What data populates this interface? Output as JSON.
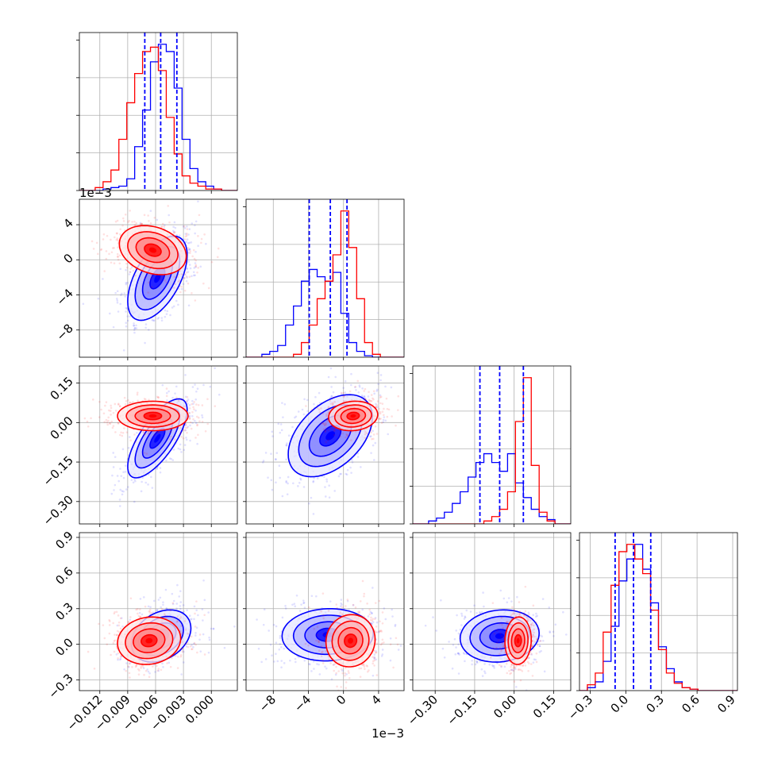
{
  "colors": {
    "series_a": "#0000ff",
    "series_b": "#ff0000",
    "grid": "#b0b0b0",
    "axes": "#000000"
  },
  "chart_data": {
    "type": "corner",
    "grid": true,
    "legend": "none",
    "params": [
      {
        "range": [
          -0.0142,
          0.0028
        ],
        "ticks": [
          -0.012,
          -0.009,
          -0.006,
          -0.003,
          0.0
        ],
        "tick_labels": [
          "−0.012",
          "−0.009",
          "−0.006",
          "−0.003",
          "0.000"
        ]
      },
      {
        "range": [
          -11.1,
          6.9
        ],
        "ticks": [
          -8,
          -4,
          0,
          4
        ],
        "tick_labels": [
          "−8",
          "−4",
          "0",
          "4"
        ],
        "offset_text": "1e−3"
      },
      {
        "range": [
          -0.385,
          0.215
        ],
        "ticks": [
          -0.3,
          -0.15,
          0.0,
          0.15
        ],
        "tick_labels": [
          "−0.30",
          "−0.15",
          "0.00",
          "0.15"
        ]
      },
      {
        "range": [
          -0.39,
          0.94
        ],
        "ticks": [
          -0.3,
          0.0,
          0.3,
          0.6,
          0.9
        ],
        "tick_labels": [
          "−0.3",
          "0.0",
          "0.3",
          "0.6",
          "0.9"
        ]
      }
    ],
    "series": [
      {
        "color": "#0000ff",
        "hist": [
          {
            "edges": [
              -0.0142,
              0.0028
            ],
            "counts": [
              0,
              0,
              0,
              1,
              2,
              3,
              8,
              30,
              55,
              88,
              100,
              95,
              70,
              35,
              15,
              6,
              3,
              1,
              0,
              0
            ]
          },
          {
            "edges": [
              -11.1,
              6.9
            ],
            "counts": [
              0,
              0,
              2,
              4,
              8,
              22,
              35,
              52,
              60,
              55,
              52,
              58,
              30,
              10,
              4,
              1,
              0,
              0,
              0,
              0
            ]
          },
          {
            "edges": [
              -0.385,
              0.215
            ],
            "counts": [
              0,
              0,
              2,
              4,
              8,
              14,
              22,
              32,
              42,
              48,
              42,
              36,
              48,
              28,
              18,
              10,
              5,
              3,
              0,
              0
            ]
          },
          {
            "edges": [
              -0.39,
              0.94
            ],
            "counts": [
              0,
              2,
              6,
              20,
              44,
              75,
              90,
              100,
              83,
              60,
              30,
              15,
              6,
              2,
              1,
              0,
              0,
              0,
              0,
              0
            ]
          }
        ],
        "quantiles": [
          [
            -0.00716,
            -0.00545,
            -0.00371
          ],
          [
            -3.9,
            -1.5,
            0.4
          ],
          [
            -0.13,
            -0.055,
            0.035
          ],
          [
            -0.09,
            0.065,
            0.21
          ]
        ],
        "blobs": [
          {
            "i": 0,
            "j": 1,
            "mx": -0.0058,
            "my": -2.1,
            "sx": 0.0016,
            "sy": 2.4,
            "rho": 0.55
          },
          {
            "i": 0,
            "j": 2,
            "mx": -0.0058,
            "my": -0.06,
            "sx": 0.0016,
            "sy": 0.075,
            "rho": 0.72
          },
          {
            "i": 0,
            "j": 3,
            "mx": -0.0054,
            "my": 0.07,
            "sx": 0.0016,
            "sy": 0.11,
            "rho": 0.3
          },
          {
            "i": 1,
            "j": 2,
            "mx": -1.5,
            "my": -0.05,
            "sx": 2.4,
            "sy": 0.078,
            "rho": 0.45
          },
          {
            "i": 1,
            "j": 3,
            "mx": -1.8,
            "my": 0.08,
            "sx": 2.6,
            "sy": 0.11,
            "rho": 0.05
          },
          {
            "i": 2,
            "j": 3,
            "mx": -0.055,
            "my": 0.07,
            "sx": 0.075,
            "sy": 0.11,
            "rho": 0.1
          }
        ]
      },
      {
        "color": "#ff0000",
        "hist": [
          {
            "edges": [
              -0.0142,
              0.0028
            ],
            "counts": [
              0,
              0,
              2,
              6,
              14,
              35,
              60,
              80,
              95,
              98,
              82,
              50,
              25,
              10,
              5,
              3,
              1,
              1,
              0,
              0
            ]
          },
          {
            "edges": [
              -11.1,
              6.9
            ],
            "counts": [
              0,
              0,
              0,
              0,
              0,
              0,
              2,
              10,
              22,
              40,
              52,
              70,
              100,
              75,
              40,
              10,
              2,
              0,
              0,
              0
            ]
          },
          {
            "edges": [
              -0.385,
              0.215
            ],
            "counts": [
              0,
              0,
              0,
              0,
              0,
              0,
              0,
              0,
              0,
              2,
              5,
              10,
              22,
              70,
              100,
              40,
              8,
              2,
              0,
              0
            ]
          },
          {
            "edges": [
              -0.39,
              0.94
            ],
            "counts": [
              0,
              4,
              12,
              40,
              72,
              95,
              100,
              90,
              80,
              55,
              28,
              12,
              5,
              2,
              1,
              0,
              0,
              0,
              0,
              0
            ]
          }
        ],
        "quantiles": [],
        "blobs": [
          {
            "i": 0,
            "j": 1,
            "mx": -0.0063,
            "my": 1.1,
            "sx": 0.0018,
            "sy": 1.4,
            "rho": -0.25
          },
          {
            "i": 0,
            "j": 2,
            "mx": -0.0063,
            "my": 0.025,
            "sx": 0.0019,
            "sy": 0.028,
            "rho": 0.0
          },
          {
            "i": 0,
            "j": 3,
            "mx": -0.0067,
            "my": 0.03,
            "sx": 0.0017,
            "sy": 0.1,
            "rho": 0.1
          },
          {
            "i": 1,
            "j": 2,
            "mx": 1.1,
            "my": 0.025,
            "sx": 1.4,
            "sy": 0.028,
            "rho": 0.1
          },
          {
            "i": 1,
            "j": 3,
            "mx": 0.8,
            "my": 0.03,
            "sx": 1.4,
            "sy": 0.11,
            "rho": 0.05
          },
          {
            "i": 2,
            "j": 3,
            "mx": 0.015,
            "my": 0.03,
            "sx": 0.025,
            "sy": 0.1,
            "rho": 0.05
          }
        ]
      }
    ]
  }
}
